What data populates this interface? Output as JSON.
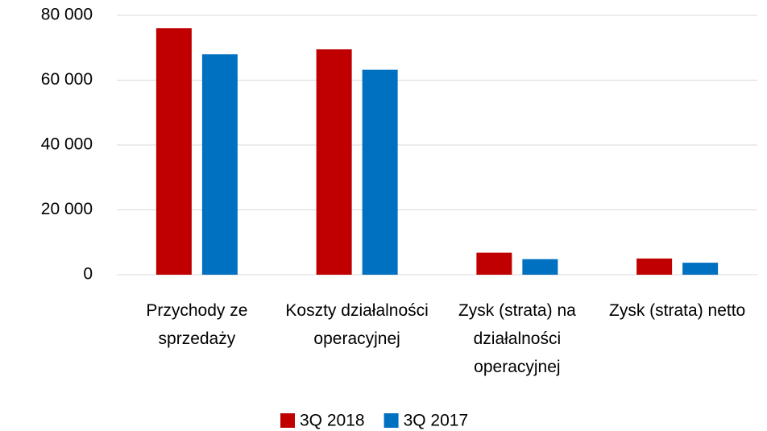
{
  "chart_data": {
    "type": "bar",
    "categories": [
      "Przychody ze sprzedaży",
      "Koszty działalności operacyjnej",
      "Zysk (strata) na działalności operacyjnej",
      "Zysk (strata) netto"
    ],
    "series": [
      {
        "name": "3Q 2018",
        "color": "#c00000",
        "values": [
          76000,
          69500,
          6800,
          5000
        ]
      },
      {
        "name": "3Q 2017",
        "color": "#0070c0",
        "values": [
          68000,
          63200,
          4800,
          3700
        ]
      }
    ],
    "ylim": [
      0,
      80000
    ],
    "yticks": [
      0,
      {
        "value": 20000,
        "label": "20 000"
      },
      {
        "value": 40000,
        "label": "40 000"
      },
      {
        "value": 60000,
        "label": "60 000"
      },
      {
        "value": 80000,
        "label": "80 000"
      }
    ],
    "grid": true,
    "legend": "bottom"
  }
}
